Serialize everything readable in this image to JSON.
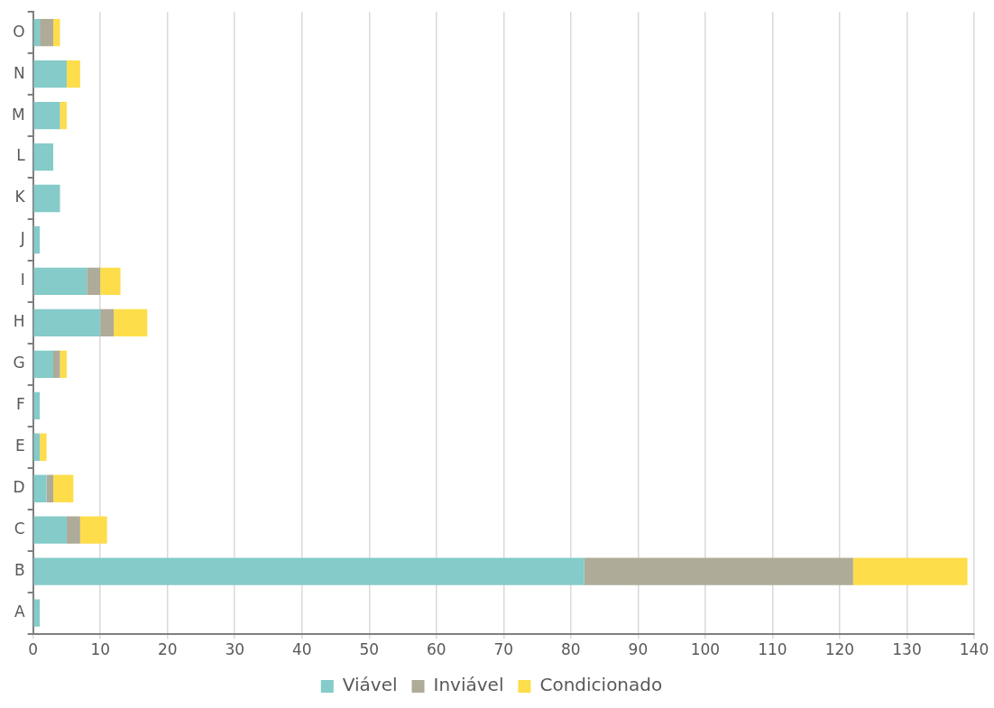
{
  "chart_data": {
    "type": "bar",
    "orientation": "horizontal",
    "stacked": true,
    "categories": [
      "O",
      "N",
      "M",
      "L",
      "K",
      "J",
      "I",
      "H",
      "G",
      "F",
      "E",
      "D",
      "C",
      "B",
      "A"
    ],
    "series": [
      {
        "name": "Viável",
        "color": "#84cbc9",
        "values": [
          1,
          5,
          4,
          3,
          4,
          1,
          8,
          10,
          3,
          1,
          1,
          2,
          5,
          82,
          1
        ]
      },
      {
        "name": "Inviável",
        "color": "#aeab98",
        "values": [
          2,
          0,
          0,
          0,
          0,
          0,
          2,
          2,
          1,
          0,
          0,
          1,
          2,
          40,
          0
        ]
      },
      {
        "name": "Condicionado",
        "color": "#fedd4a",
        "values": [
          1,
          2,
          1,
          0,
          0,
          0,
          3,
          5,
          1,
          0,
          1,
          3,
          4,
          17,
          0
        ]
      }
    ],
    "xlim": [
      0,
      140
    ],
    "xticks": [
      0,
      10,
      20,
      30,
      40,
      50,
      60,
      70,
      80,
      90,
      100,
      110,
      120,
      130,
      140
    ],
    "grid": "x",
    "legend": "bottom"
  }
}
